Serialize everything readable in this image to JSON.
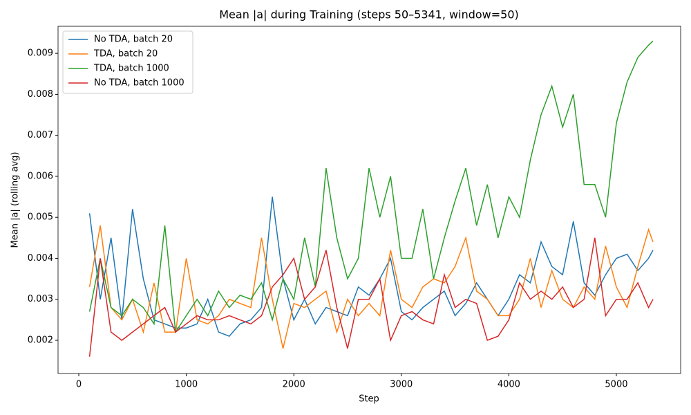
{
  "chart_data": {
    "type": "line",
    "title": "Mean |a| during Training (steps 50–5341, window=50)",
    "x_label": "Step",
    "y_label": "Mean |a| (rolling avg)",
    "x": [
      100,
      200,
      300,
      400,
      500,
      600,
      700,
      800,
      900,
      1000,
      1100,
      1200,
      1300,
      1400,
      1500,
      1600,
      1700,
      1800,
      1900,
      2000,
      2100,
      2200,
      2300,
      2400,
      2500,
      2600,
      2700,
      2800,
      2900,
      3000,
      3100,
      3200,
      3300,
      3400,
      3500,
      3600,
      3700,
      3800,
      3900,
      4000,
      4100,
      4200,
      4300,
      4400,
      4500,
      4600,
      4700,
      4800,
      4900,
      5000,
      5100,
      5200,
      5300,
      5341
    ],
    "series": [
      {
        "name": "No TDA, batch 20",
        "color": "#1f77b4",
        "values": [
          0.0051,
          0.003,
          0.0045,
          0.0025,
          0.0052,
          0.0035,
          0.0025,
          0.0024,
          0.0023,
          0.0023,
          0.0024,
          0.003,
          0.0022,
          0.0021,
          0.0024,
          0.0025,
          0.0028,
          0.0055,
          0.0035,
          0.0025,
          0.003,
          0.0024,
          0.0028,
          0.0027,
          0.0026,
          0.0033,
          0.0031,
          0.0035,
          0.004,
          0.0027,
          0.0025,
          0.0028,
          0.003,
          0.0032,
          0.0026,
          0.0029,
          0.0034,
          0.003,
          0.0026,
          0.003,
          0.0036,
          0.0034,
          0.0044,
          0.0038,
          0.0036,
          0.0049,
          0.0034,
          0.0031,
          0.0036,
          0.004,
          0.0041,
          0.0037,
          0.004,
          0.0042
        ]
      },
      {
        "name": "TDA, batch 20",
        "color": "#ff7f0e",
        "values": [
          0.0033,
          0.0048,
          0.0028,
          0.0025,
          0.003,
          0.0022,
          0.0034,
          0.0022,
          0.0022,
          0.004,
          0.0025,
          0.0024,
          0.0026,
          0.003,
          0.0029,
          0.0028,
          0.0045,
          0.003,
          0.0018,
          0.0029,
          0.0028,
          0.003,
          0.0032,
          0.0022,
          0.003,
          0.0026,
          0.0029,
          0.0026,
          0.0042,
          0.003,
          0.0028,
          0.0033,
          0.0035,
          0.0034,
          0.0038,
          0.0045,
          0.0032,
          0.003,
          0.0026,
          0.0026,
          0.003,
          0.004,
          0.0028,
          0.0037,
          0.003,
          0.0028,
          0.0033,
          0.003,
          0.0043,
          0.0033,
          0.0028,
          0.0038,
          0.0047,
          0.0044
        ]
      },
      {
        "name": "TDA, batch 1000",
        "color": "#2ca02c",
        "values": [
          0.0027,
          0.004,
          0.0028,
          0.0026,
          0.003,
          0.0028,
          0.0024,
          0.0048,
          0.0022,
          0.0026,
          0.003,
          0.0026,
          0.0032,
          0.0028,
          0.0031,
          0.003,
          0.0034,
          0.0025,
          0.0035,
          0.003,
          0.0045,
          0.0033,
          0.0062,
          0.0045,
          0.0035,
          0.004,
          0.0062,
          0.005,
          0.006,
          0.004,
          0.004,
          0.0052,
          0.0035,
          0.0045,
          0.0054,
          0.0062,
          0.0048,
          0.0058,
          0.0045,
          0.0055,
          0.005,
          0.0064,
          0.0075,
          0.0082,
          0.0072,
          0.008,
          0.0058,
          0.0058,
          0.005,
          0.0073,
          0.0083,
          0.0089,
          0.0092,
          0.0093
        ]
      },
      {
        "name": "No TDA, batch 1000",
        "color": "#d62728",
        "values": [
          0.0016,
          0.004,
          0.0022,
          0.002,
          0.0022,
          0.0024,
          0.0026,
          0.0028,
          0.0022,
          0.0024,
          0.0026,
          0.0025,
          0.0025,
          0.0026,
          0.0025,
          0.0024,
          0.0026,
          0.0033,
          0.0036,
          0.004,
          0.003,
          0.0033,
          0.0042,
          0.0028,
          0.0018,
          0.003,
          0.003,
          0.0035,
          0.002,
          0.0026,
          0.0027,
          0.0025,
          0.0024,
          0.0036,
          0.0028,
          0.003,
          0.0029,
          0.002,
          0.0021,
          0.0025,
          0.0034,
          0.003,
          0.0032,
          0.003,
          0.0033,
          0.0028,
          0.003,
          0.0045,
          0.0026,
          0.003,
          0.003,
          0.0034,
          0.0028,
          0.003
        ]
      }
    ],
    "xlim": [
      -193,
      5598
    ],
    "ylim": [
      0.00119,
      0.00966
    ],
    "xticks": [
      0,
      1000,
      2000,
      3000,
      4000,
      5000
    ],
    "yticks": [
      0.002,
      0.003,
      0.004,
      0.005,
      0.006,
      0.007,
      0.008,
      0.009
    ],
    "legend": "upper left",
    "grid": false
  }
}
